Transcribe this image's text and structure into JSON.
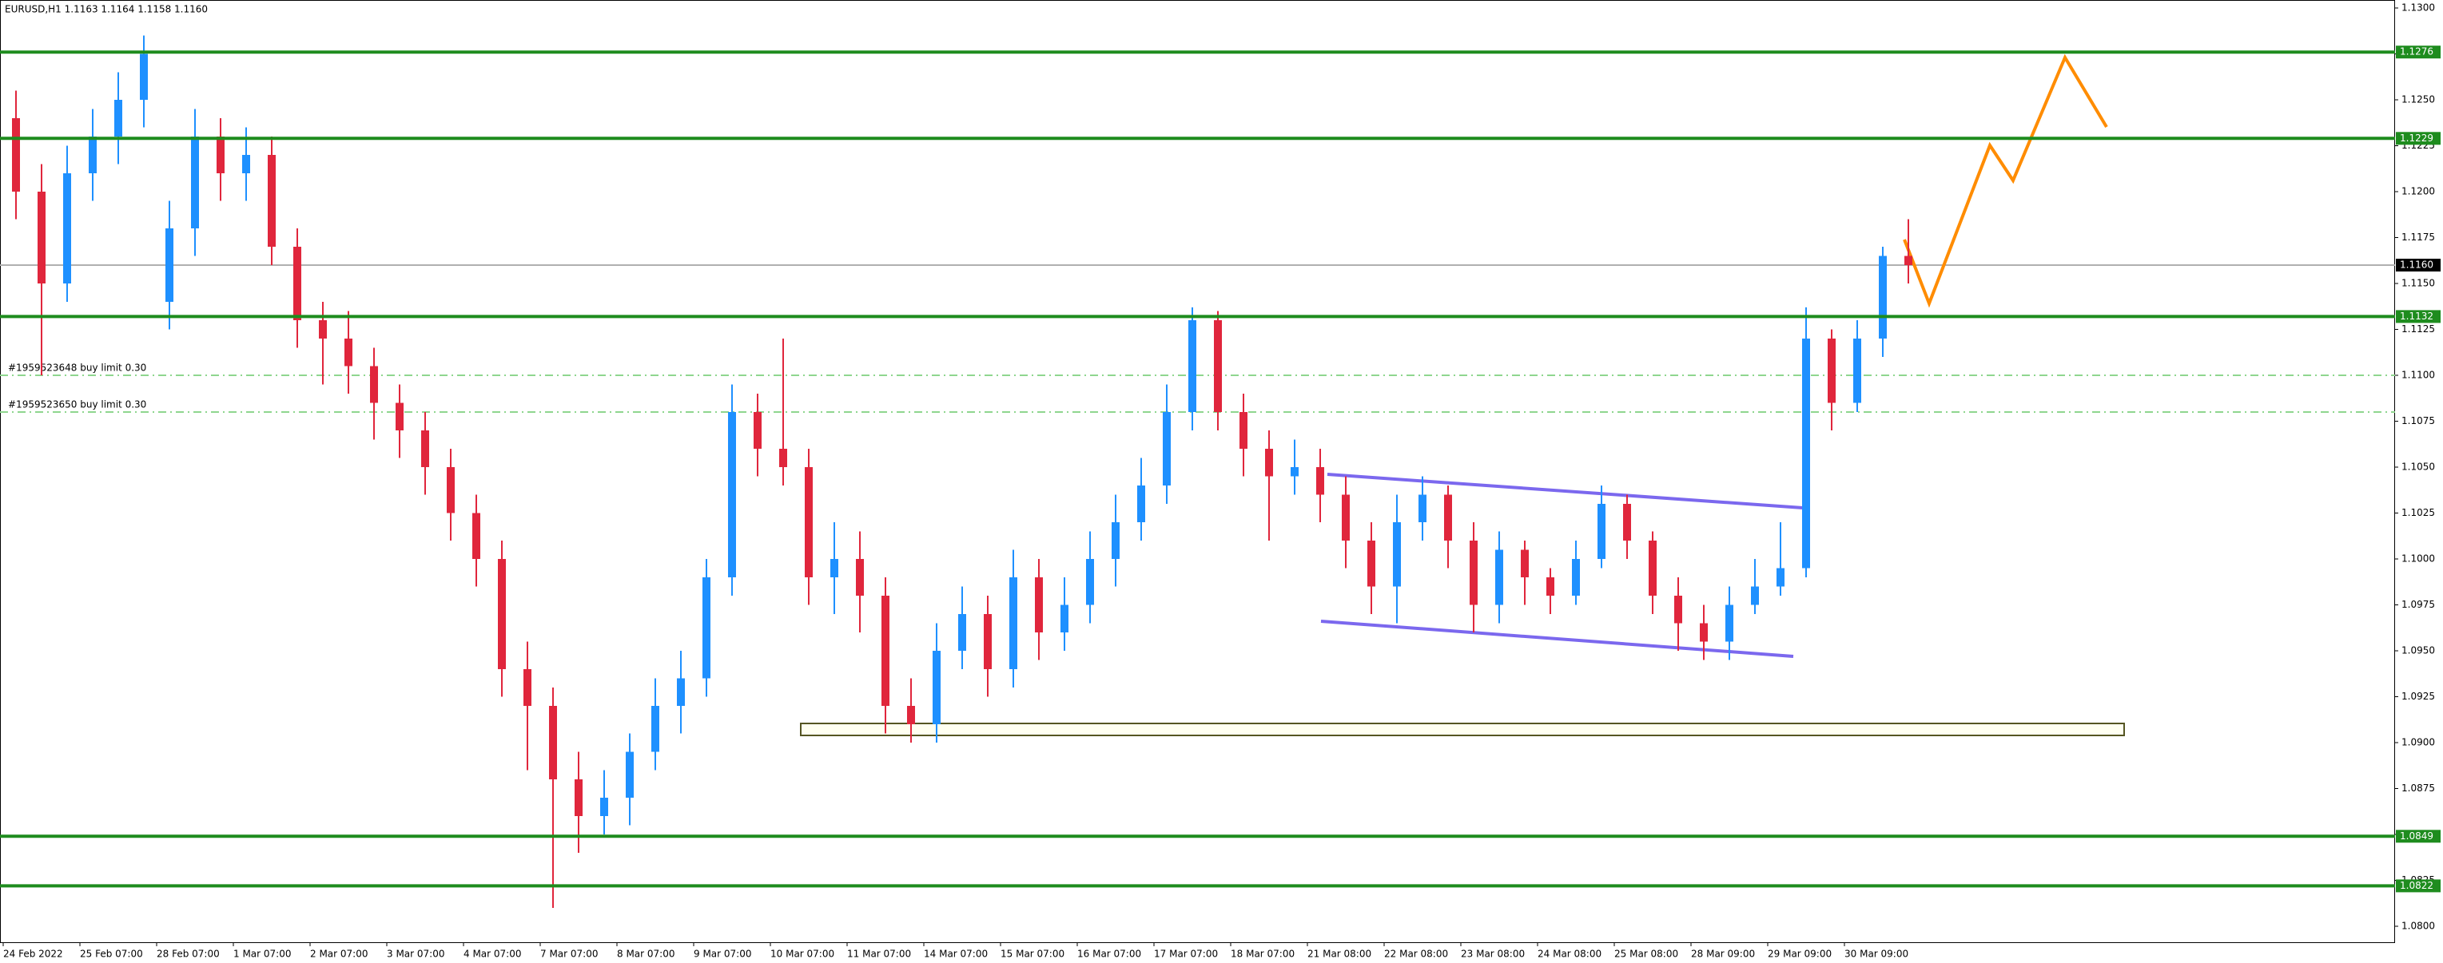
{
  "chart_data": {
    "type": "candlestick",
    "title": "EURUSD,H1  1.1163 1.1164 1.1158 1.1160",
    "categories": [
      "24 Feb 2022",
      null,
      null,
      "25 Feb 07:00",
      null,
      null,
      "28 Feb 07:00",
      null,
      null,
      "1 Mar 07:00",
      null,
      null,
      "2 Mar 07:00",
      null,
      null,
      "3 Mar 07:00",
      null,
      null,
      "4 Mar 07:00",
      null,
      null,
      "7 Mar 07:00",
      null,
      null,
      "8 Mar 07:00",
      null,
      null,
      "9 Mar 07:00",
      null,
      null,
      "10 Mar 07:00",
      null,
      null,
      "11 Mar 07:00",
      null,
      null,
      "14 Mar 07:00",
      null,
      null,
      "15 Mar 07:00",
      null,
      null,
      "16 Mar 07:00",
      null,
      null,
      "17 Mar 07:00",
      null,
      null,
      "18 Mar 07:00",
      null,
      null,
      "21 Mar 08:00",
      null,
      null,
      "22 Mar 08:00",
      null,
      null,
      "23 Mar 08:00",
      null,
      null,
      "24 Mar 08:00",
      null,
      null,
      "25 Mar 08:00",
      null,
      null,
      "28 Mar 09:00",
      null,
      null,
      "29 Mar 09:00",
      null,
      null,
      "30 Mar 09:00",
      null,
      null
    ],
    "open": [
      1.124,
      1.12,
      1.115,
      1.121,
      1.123,
      1.125,
      1.114,
      1.118,
      1.123,
      1.121,
      1.122,
      1.117,
      1.113,
      1.112,
      1.1105,
      1.1085,
      1.107,
      1.105,
      1.1025,
      1.1,
      1.094,
      1.092,
      1.088,
      1.086,
      1.087,
      1.0895,
      1.092,
      1.0935,
      1.099,
      1.108,
      1.106,
      1.105,
      1.099,
      1.1,
      1.098,
      1.092,
      1.091,
      1.095,
      1.097,
      1.094,
      1.099,
      1.096,
      1.0975,
      1.1,
      1.102,
      1.104,
      1.108,
      1.113,
      1.108,
      1.106,
      1.1045,
      1.105,
      1.1035,
      1.101,
      1.0985,
      1.102,
      1.1035,
      1.101,
      1.0975,
      1.1005,
      1.099,
      1.098,
      1.1,
      1.103,
      1.101,
      1.098,
      1.0965,
      1.0955,
      1.0975,
      1.0985,
      1.0995,
      1.112,
      1.1085,
      1.112,
      1.1165
    ],
    "high": [
      1.1255,
      1.1215,
      1.1225,
      1.1245,
      1.1265,
      1.1285,
      1.1195,
      1.1245,
      1.124,
      1.1235,
      1.123,
      1.118,
      1.114,
      1.1135,
      1.1115,
      1.1095,
      1.108,
      1.106,
      1.1035,
      1.101,
      1.0955,
      1.093,
      1.0895,
      1.0885,
      1.0905,
      1.0935,
      1.095,
      1.1,
      1.1095,
      1.109,
      1.112,
      1.106,
      1.102,
      1.1015,
      1.099,
      1.0935,
      1.0965,
      1.0985,
      1.098,
      1.1005,
      1.1,
      1.099,
      1.1015,
      1.1035,
      1.1055,
      1.1095,
      1.1137,
      1.1135,
      1.109,
      1.107,
      1.1065,
      1.106,
      1.1045,
      1.102,
      1.1035,
      1.1045,
      1.104,
      1.102,
      1.1015,
      1.101,
      1.0995,
      1.101,
      1.104,
      1.1035,
      1.1015,
      1.099,
      1.0975,
      1.0985,
      1.1,
      1.102,
      1.1137,
      1.1125,
      1.113,
      1.117,
      1.1185
    ],
    "low": [
      1.1185,
      1.11,
      1.114,
      1.1195,
      1.1215,
      1.1235,
      1.1125,
      1.1165,
      1.1195,
      1.1195,
      1.116,
      1.1115,
      1.1095,
      1.109,
      1.1065,
      1.1055,
      1.1035,
      1.101,
      1.0985,
      1.0925,
      1.0885,
      1.081,
      1.084,
      1.085,
      1.0855,
      1.0885,
      1.0905,
      1.0925,
      1.098,
      1.1045,
      1.104,
      1.0975,
      1.097,
      1.096,
      1.0905,
      1.09,
      1.09,
      1.094,
      1.0925,
      1.093,
      1.0945,
      1.095,
      1.0965,
      1.0985,
      1.101,
      1.103,
      1.107,
      1.107,
      1.1045,
      1.101,
      1.1035,
      1.102,
      1.0995,
      1.097,
      1.0965,
      1.101,
      1.0995,
      1.096,
      1.0965,
      1.0975,
      1.097,
      1.0975,
      1.0995,
      1.1,
      1.097,
      1.095,
      1.0945,
      1.0945,
      1.097,
      1.098,
      1.099,
      1.107,
      1.108,
      1.111,
      1.115
    ],
    "close": [
      1.12,
      1.115,
      1.121,
      1.123,
      1.125,
      1.1275,
      1.118,
      1.123,
      1.121,
      1.122,
      1.117,
      1.113,
      1.112,
      1.1105,
      1.1085,
      1.107,
      1.105,
      1.1025,
      1.1,
      1.094,
      1.092,
      1.088,
      1.086,
      1.087,
      1.0895,
      1.092,
      1.0935,
      1.099,
      1.108,
      1.106,
      1.105,
      1.099,
      1.1,
      1.098,
      1.092,
      1.091,
      1.095,
      1.097,
      1.094,
      1.099,
      1.096,
      1.0975,
      1.1,
      1.102,
      1.104,
      1.108,
      1.113,
      1.108,
      1.106,
      1.1045,
      1.105,
      1.1035,
      1.101,
      1.0985,
      1.102,
      1.1035,
      1.101,
      1.0975,
      1.1005,
      1.099,
      1.098,
      1.1,
      1.103,
      1.101,
      1.098,
      1.0965,
      1.0955,
      1.0975,
      1.0985,
      1.0995,
      1.112,
      1.1085,
      1.112,
      1.1165,
      1.116
    ],
    "up_color": "#1e90ff",
    "down_color": "#e0263c",
    "ylim": [
      1.08,
      1.13
    ],
    "yticks": [
      {
        "value": 1.08,
        "label": "1.0800"
      },
      {
        "value": 1.0825,
        "label": "1.0825"
      },
      {
        "value": 1.085,
        "label": "1.0850"
      },
      {
        "value": 1.0875,
        "label": "1.0875"
      },
      {
        "value": 1.09,
        "label": "1.0900"
      },
      {
        "value": 1.0925,
        "label": "1.0925"
      },
      {
        "value": 1.095,
        "label": "1.0950"
      },
      {
        "value": 1.0975,
        "label": "1.0975"
      },
      {
        "value": 1.1,
        "label": "1.1000"
      },
      {
        "value": 1.1025,
        "label": "1.1025"
      },
      {
        "value": 1.105,
        "label": "1.1050"
      },
      {
        "value": 1.1075,
        "label": "1.1075"
      },
      {
        "value": 1.11,
        "label": "1.1100"
      },
      {
        "value": 1.1125,
        "label": "1.1125"
      },
      {
        "value": 1.115,
        "label": "1.1150"
      },
      {
        "value": 1.1175,
        "label": "1.1175"
      },
      {
        "value": 1.12,
        "label": "1.1200"
      },
      {
        "value": 1.1225,
        "label": "1.1225"
      },
      {
        "value": 1.125,
        "label": "1.1250"
      },
      {
        "value": 1.1275,
        "label": "1.1275"
      },
      {
        "value": 1.13,
        "label": "1.1300"
      }
    ],
    "levels": [
      1.1276,
      1.1229,
      1.1132,
      1.0849,
      1.0822
    ],
    "level_color": "#1e8c1e",
    "current_price": {
      "value": 1.116,
      "label": "1.1160"
    },
    "orders": [
      {
        "label": "#1959523648 buy limit 0.30",
        "price": 1.11
      },
      {
        "label": "#1959523650 buy limit 0.30",
        "price": 1.108
      }
    ]
  }
}
